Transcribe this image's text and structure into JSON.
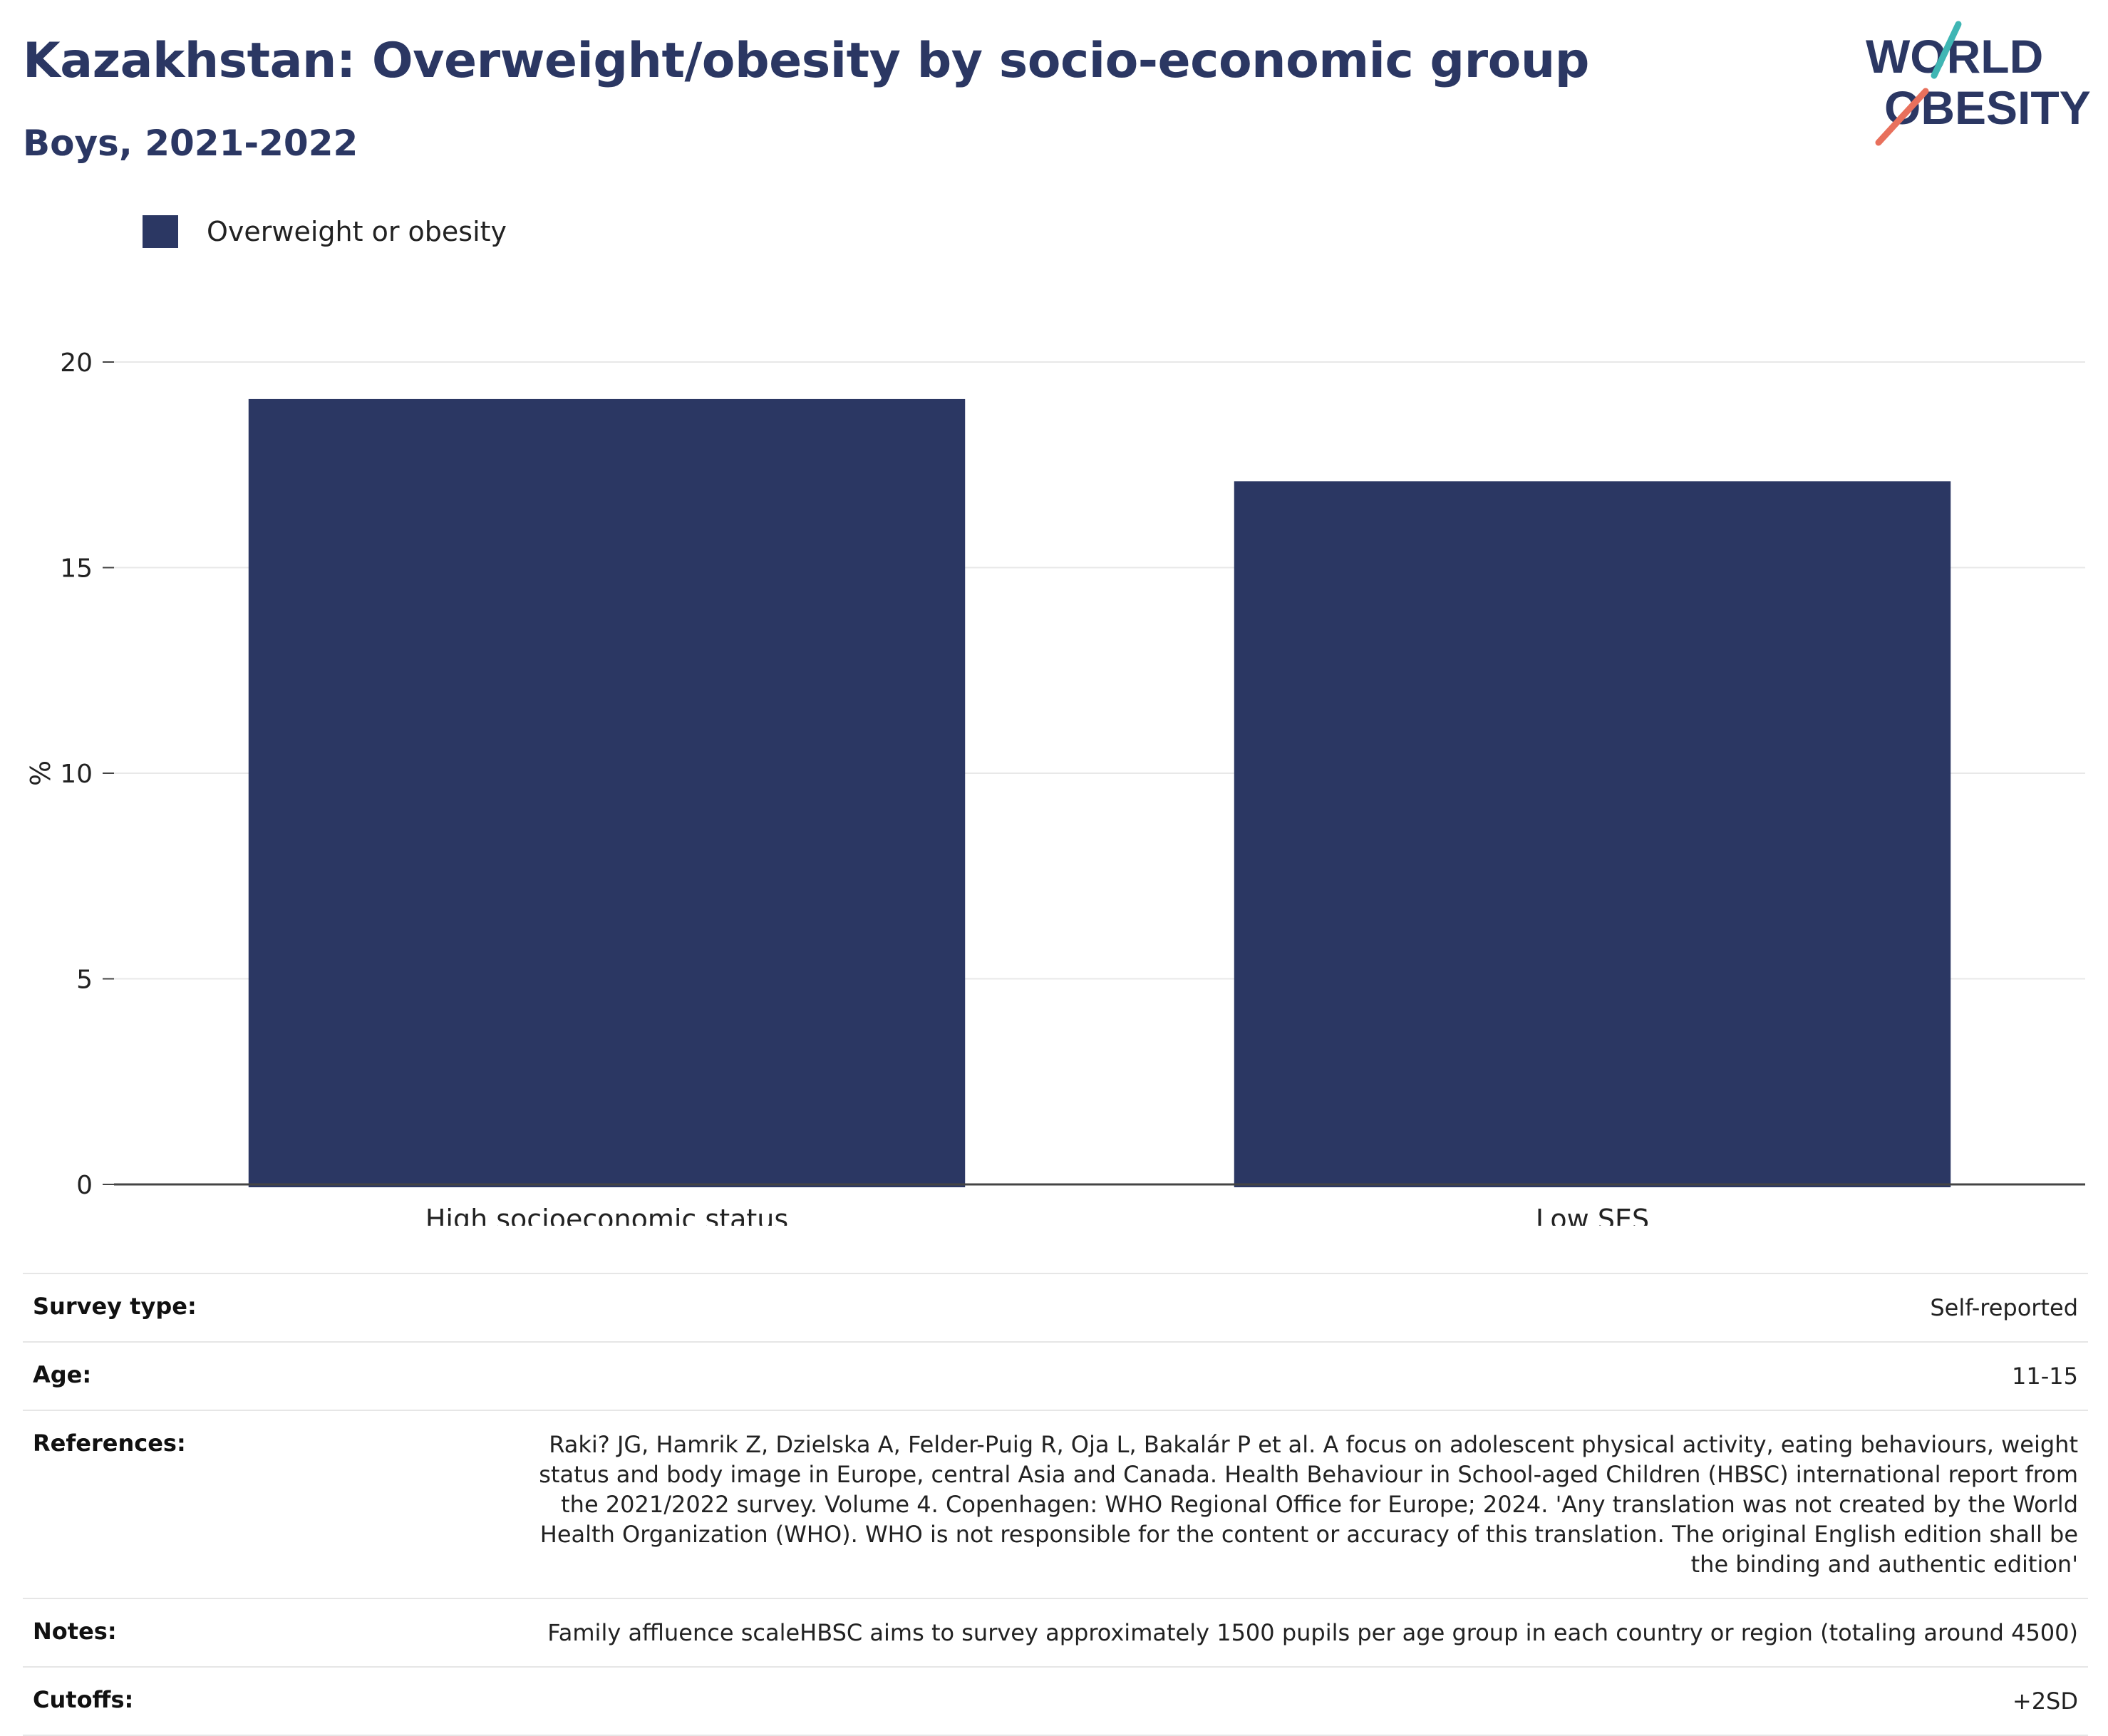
{
  "header": {
    "title": "Kazakhstan: Overweight/obesity by socio-economic group",
    "subtitle": "Boys, 2021-2022"
  },
  "logo": {
    "line1": "WORLD",
    "line2": "OBESITY"
  },
  "colors": {
    "bar": "#2b3763",
    "title": "#2b3763",
    "logo_teal": "#3fb6b4",
    "logo_coral": "#e8705c"
  },
  "legend": {
    "label": "Overweight or obesity"
  },
  "chart_data": {
    "type": "bar",
    "categories": [
      "High socioeconomic status",
      "Low SES"
    ],
    "series": [
      {
        "name": "Overweight or obesity",
        "values": [
          19.1,
          17.1
        ]
      }
    ],
    "ylabel": "%",
    "ylim": [
      0,
      20
    ],
    "yticks": [
      0,
      5,
      10,
      15,
      20
    ],
    "grid": true,
    "legend_position": "top-left"
  },
  "meta": [
    {
      "key": "Survey type:",
      "value": "Self-reported"
    },
    {
      "key": "Age:",
      "value": "11-15"
    },
    {
      "key": "References:",
      "value": "Raki? JG, Hamrik Z, Dzielska A, Felder-Puig R, Oja L, Bakalár P et al. A focus on adolescent physical activity, eating behaviours, weight status and body image in Europe, central Asia and Canada. Health Behaviour in School-aged Children (HBSC) international report from the 2021/2022 survey. Volume 4. Copenhagen: WHO Regional Office for Europe; 2024. 'Any translation was not created by the World Health Organization (WHO). WHO is not responsible for the content or accuracy of this translation. The original English edition shall be the binding and authentic edition'"
    },
    {
      "key": "Notes:",
      "value": "Family affluence scaleHBSC aims to survey approximately 1500 pupils per age group in each country or region (totaling around 4500)"
    },
    {
      "key": "Cutoffs:",
      "value": "+2SD"
    }
  ]
}
